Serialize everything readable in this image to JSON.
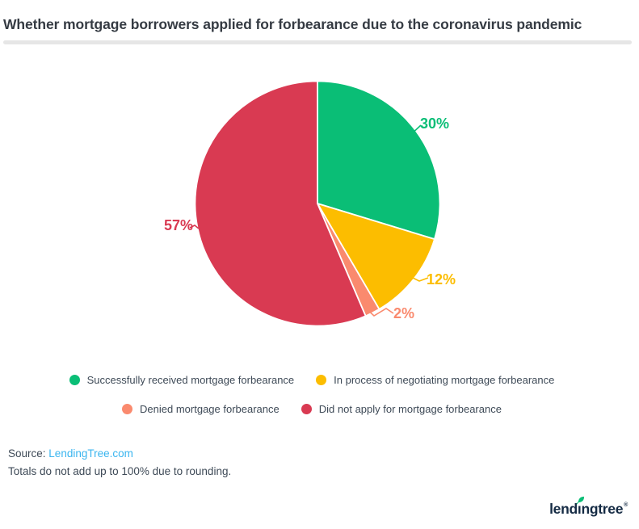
{
  "header": {
    "title": "Whether mortgage borrowers applied for forbearance due to the coronavirus pandemic"
  },
  "chart_data": {
    "type": "pie",
    "title": "Whether mortgage borrowers applied for forbearance due to the coronavirus pandemic",
    "slices": [
      {
        "label": "Successfully received mortgage forbearance",
        "value": 30,
        "display": "30%",
        "color": "#0abe76"
      },
      {
        "label": "In process of negotiating mortgage forbearance",
        "value": 12,
        "display": "12%",
        "color": "#fcbd00"
      },
      {
        "label": "Denied mortgage forbearance",
        "value": 2,
        "display": "2%",
        "color": "#fa8a6e"
      },
      {
        "label": "Did not apply for mortgage forbearance",
        "value": 57,
        "display": "57%",
        "color": "#d93a52"
      }
    ],
    "value_suffix": "%",
    "start_position": "top",
    "direction": "clockwise",
    "legend_position": "bottom",
    "note": "Totals do not add up to 100% due to rounding."
  },
  "source": {
    "prefix": "Source:",
    "link_text": "LendingTree.com"
  },
  "footnote": "Totals do not add up to 100% due to rounding.",
  "logo": {
    "text": "lendingtree",
    "pre": "lend",
    "i_char": "ı",
    "post": "ngtree",
    "reg": "®"
  },
  "colors": {
    "text_dark": "#353b43",
    "text_body": "#3e4a57",
    "divider": "#e6e6e6",
    "link_blue": "#3ab5ef",
    "logo_navy": "#152b44",
    "leaf_green": "#0abe76"
  }
}
